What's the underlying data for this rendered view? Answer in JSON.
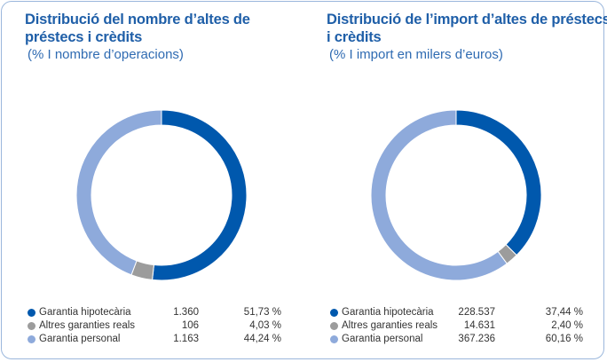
{
  "chart_data": [
    {
      "type": "pie",
      "title": "Distribució del nombre d’altes de préstecs i crèdits",
      "subtitle": "(% I nombre d’operacions)",
      "categories": [
        "Garantia hipotecària",
        "Altres garanties reals",
        "Garantia personal"
      ],
      "counts": [
        "1.360",
        "106",
        "1.163"
      ],
      "percent_labels": [
        "51,73 %",
        "4,03 %",
        "44,24 %"
      ],
      "values": [
        51.73,
        4.03,
        44.24
      ],
      "colors": [
        "#0058ad",
        "#9c9c9c",
        "#8eaadb"
      ],
      "donut": true
    },
    {
      "type": "pie",
      "title": "Distribució de l’import d’altes de préstecs i crèdits",
      "subtitle": "(% I import en milers d’euros)",
      "categories": [
        "Garantia hipotecària",
        "Altres garanties reals",
        "Garantia personal"
      ],
      "counts": [
        "228.537",
        "14.631",
        "367.236"
      ],
      "percent_labels": [
        "37,44 %",
        "2,40 %",
        "60,16 %"
      ],
      "values": [
        37.44,
        2.4,
        60.16
      ],
      "colors": [
        "#0058ad",
        "#9c9c9c",
        "#8eaadb"
      ],
      "donut": true
    }
  ]
}
